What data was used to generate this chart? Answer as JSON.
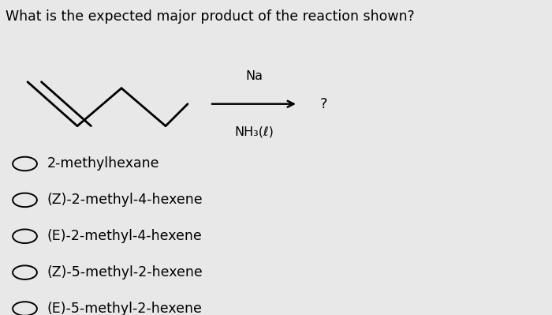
{
  "question": "What is the expected major product of the reaction shown?",
  "choices": [
    "2-methylhexane",
    "(Z)-2-methyl-4-hexene",
    "(E)-2-methyl-4-hexene",
    "(Z)-5-methyl-2-hexene",
    "(E)-5-methyl-2-hexene"
  ],
  "reagent_above": "Na",
  "reagent_below": "NH₃(ℓ)",
  "background_color": "#e8e8e8",
  "text_color": "#000000",
  "question_fontsize": 12.5,
  "choice_fontsize": 12.5,
  "reagent_fontsize": 11.5
}
